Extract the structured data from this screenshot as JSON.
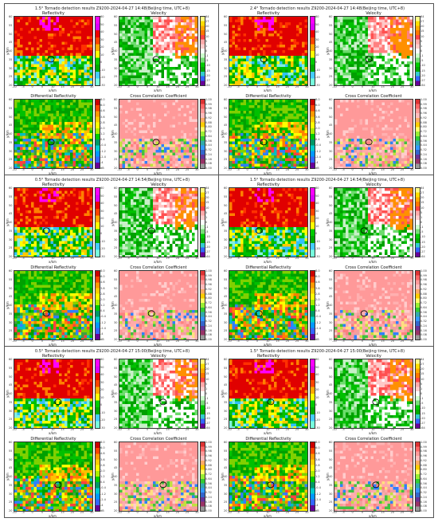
{
  "figures": [
    {
      "title": "1.5°  Tornado detection results Z9200-2024-04-27 14:48(Beijing time, UTC+8)"
    },
    {
      "title": "2.4°  Tornado detection results Z9200-2024-04-27 14:48(Beijing time, UTC+8)"
    },
    {
      "title": "0.5°  Tornado detection results Z9200-2024-04-27 14:54(Beijing time, UTC+8)"
    },
    {
      "title": "1.5°  Tornado detection results Z9200-2024-04-27 14:54(Beijing time, UTC+8)"
    },
    {
      "title": "0.5°  Tornado detection results Z9200-2024-04-27 15:00(Beijing time, UTC+8)"
    },
    {
      "title": "1.5°  Tornado detection results Z9200-2024-04-27 15:00(Beijing time, UTC+8)"
    }
  ],
  "panels": {
    "reflectivity": {
      "title": "Reflectivity",
      "ticks": [
        "60",
        "50",
        "40",
        "30",
        "20",
        "10",
        "0",
        "-10",
        "-20",
        "-30"
      ],
      "colors": [
        "#f0f",
        "#d0f",
        "#e00",
        "#f40",
        "#fa0",
        "#ff0",
        "#0c0",
        "#0a0",
        "#4cf",
        "#7fd"
      ]
    },
    "velocity": {
      "title": "Velocity",
      "ticks": [
        "64",
        "27",
        "20",
        "15",
        "10",
        "5",
        "1",
        "0",
        "-1",
        "-5",
        "-10",
        "-15",
        "-20",
        "-27",
        "-64"
      ],
      "colors": [
        "#ff8",
        "#fd0",
        "#fa0",
        "#f70",
        "#f44",
        "#faa",
        "#fcc",
        "#fff",
        "#cfc",
        "#7d7",
        "#0c0",
        "#0a0",
        "#3cc",
        "#36f",
        "#609"
      ]
    },
    "zdr": {
      "title": "Differential Reflectivity",
      "ticks": [
        "8.0",
        "6.0",
        "4.6",
        "3.6",
        "2.8",
        "2.0",
        "1.2",
        "0.4",
        "-0.4",
        "-1.2",
        "-2.4",
        "-4",
        "dB"
      ],
      "colors": [
        "#c00",
        "#f40",
        "#f90",
        "#fc0",
        "#ff0",
        "#ae0",
        "#0c0",
        "#096",
        "#0cc",
        "#09f",
        "#36f",
        "#609"
      ]
    },
    "cc": {
      "title": "Cross Correlation Coefficient",
      "ticks": [
        "1.00",
        "0.99",
        "0.98",
        "0.96",
        "0.92",
        "0.88",
        "0.80",
        "0.72",
        "0.64",
        "0.56",
        "0.44",
        "0.32",
        "0.24",
        "0.16",
        "0.08",
        "0.00"
      ],
      "colors": [
        "#d33",
        "#f66",
        "#f99",
        "#fbb",
        "#fa6",
        "#fc0",
        "#ff6",
        "#9e3",
        "#3c3",
        "#3aa",
        "#39f",
        "#36c",
        "#639",
        "#936",
        "#999"
      ]
    }
  },
  "axes": {
    "xlabel": "x/km",
    "ylabel": "y/km",
    "xticks": [
      "-10",
      "-5",
      "0",
      "5",
      "10",
      "15",
      "20",
      "25",
      "30"
    ],
    "yticks": [
      "60",
      "55",
      "50",
      "45",
      "40",
      "35",
      "30",
      "25",
      "20"
    ]
  }
}
